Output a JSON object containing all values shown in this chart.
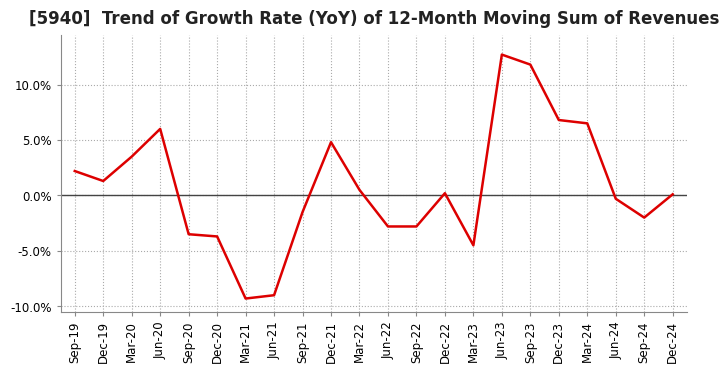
{
  "title": "[5940]  Trend of Growth Rate (YoY) of 12-Month Moving Sum of Revenues",
  "x_labels": [
    "Sep-19",
    "Dec-19",
    "Mar-20",
    "Jun-20",
    "Sep-20",
    "Dec-20",
    "Mar-21",
    "Jun-21",
    "Sep-21",
    "Dec-21",
    "Mar-22",
    "Jun-22",
    "Sep-22",
    "Dec-22",
    "Mar-23",
    "Jun-23",
    "Sep-23",
    "Dec-23",
    "Mar-24",
    "Jun-24",
    "Sep-24",
    "Dec-24"
  ],
  "y_values": [
    2.2,
    1.3,
    3.5,
    6.0,
    -3.5,
    -3.7,
    -9.3,
    -9.0,
    -1.5,
    4.8,
    0.5,
    -2.8,
    -2.8,
    0.2,
    -4.5,
    12.7,
    11.8,
    6.8,
    6.5,
    -0.3,
    -2.0,
    0.1
  ],
  "line_color": "#dd0000",
  "line_width": 1.8,
  "ylim": [
    -10.5,
    14.5
  ],
  "yticks": [
    -10.0,
    -5.0,
    0.0,
    5.0,
    10.0
  ],
  "ytick_labels": [
    "-10.0%",
    "-5.0%",
    "0.0%",
    "5.0%",
    "10.0%"
  ],
  "background_color": "#ffffff",
  "plot_bg_color": "#ffffff",
  "grid_color": "#aaaaaa",
  "zero_line_color": "#444444",
  "title_fontsize": 12,
  "tick_fontsize": 8.5
}
